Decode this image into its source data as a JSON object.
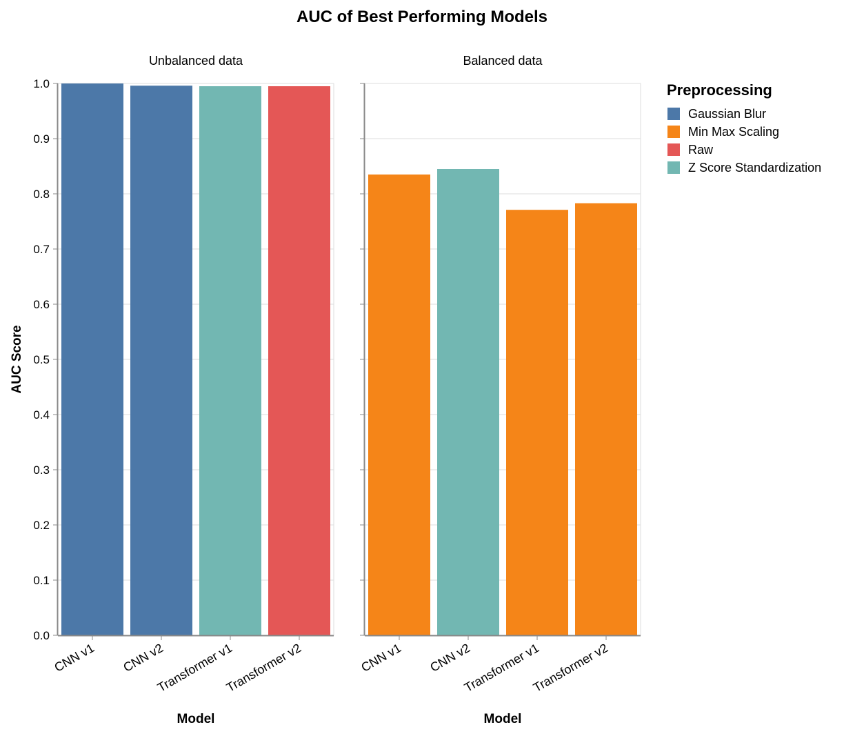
{
  "chart_data": {
    "type": "bar",
    "title": "AUC of Best Performing Models",
    "ylabel": "AUC Score",
    "xlabel": "Model",
    "ylim": [
      0,
      1
    ],
    "yticks": [
      "0.0",
      "0.1",
      "0.2",
      "0.3",
      "0.4",
      "0.5",
      "0.6",
      "0.7",
      "0.8",
      "0.9",
      "1.0"
    ],
    "grid": true,
    "legend": {
      "title": "Preprocessing",
      "placement": "right",
      "items": [
        {
          "label": "Gaussian Blur",
          "color": "#4c78a8"
        },
        {
          "label": "Min Max Scaling",
          "color": "#f58518"
        },
        {
          "label": "Raw",
          "color": "#e45756"
        },
        {
          "label": "Z Score Standardization",
          "color": "#72b7b2"
        }
      ]
    },
    "panels": [
      {
        "title": "Unbalanced data",
        "categories": [
          "CNN v1",
          "CNN v2",
          "Transformer v1",
          "Transformer v2"
        ],
        "values": [
          1.0,
          0.996,
          0.995,
          0.995
        ],
        "preprocessing": [
          "Gaussian Blur",
          "Gaussian Blur",
          "Z Score Standardization",
          "Raw"
        ]
      },
      {
        "title": "Balanced data",
        "categories": [
          "CNN v1",
          "CNN v2",
          "Transformer v1",
          "Transformer v2"
        ],
        "values": [
          0.835,
          0.845,
          0.771,
          0.783
        ],
        "preprocessing": [
          "Min Max Scaling",
          "Z Score Standardization",
          "Min Max Scaling",
          "Min Max Scaling"
        ]
      }
    ]
  }
}
